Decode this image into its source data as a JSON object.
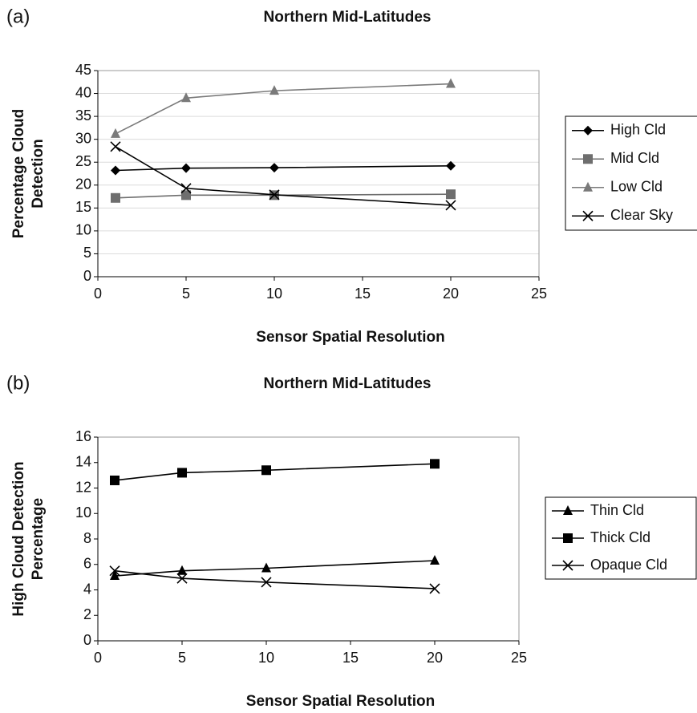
{
  "chart_data": [
    {
      "type": "line",
      "panel": "(a)",
      "title": "Northern Mid-Latitudes",
      "xlabel": "Sensor Spatial Resolution",
      "ylabel": [
        "Percentage Cloud",
        "Detection"
      ],
      "x": [
        1,
        5,
        10,
        20
      ],
      "xlim": [
        0,
        25
      ],
      "xticks": [
        0,
        5,
        10,
        15,
        20,
        25
      ],
      "ylim": [
        0,
        45
      ],
      "yticks": [
        0,
        5,
        10,
        15,
        20,
        25,
        30,
        35,
        40,
        45
      ],
      "grid": true,
      "legend": "right",
      "series": [
        {
          "name": "High Cld",
          "color": "#000000",
          "marker": "diamond",
          "values": [
            23.2,
            23.7,
            23.8,
            24.2
          ]
        },
        {
          "name": "Mid Cld",
          "color": "#6e6e6e",
          "marker": "square",
          "values": [
            17.2,
            17.8,
            17.8,
            18.0
          ]
        },
        {
          "name": "Low Cld",
          "color": "#7a7a7a",
          "marker": "triangle",
          "values": [
            31.2,
            39.0,
            40.6,
            42.1
          ]
        },
        {
          "name": "Clear Sky",
          "color": "#000000",
          "marker": "x",
          "values": [
            28.4,
            19.3,
            17.9,
            15.6
          ]
        }
      ]
    },
    {
      "type": "line",
      "panel": "(b)",
      "title": "Northern Mid-Latitudes",
      "xlabel": "Sensor Spatial Resolution",
      "ylabel": [
        "High Cloud Detection",
        "Percentage"
      ],
      "x": [
        1,
        5,
        10,
        20
      ],
      "xlim": [
        0,
        25
      ],
      "xticks": [
        0,
        5,
        10,
        15,
        20,
        25
      ],
      "ylim": [
        0,
        16
      ],
      "yticks": [
        0,
        2,
        4,
        6,
        8,
        10,
        12,
        14,
        16
      ],
      "grid": false,
      "legend": "right",
      "series": [
        {
          "name": "Thin Cld",
          "color": "#000000",
          "marker": "triangle",
          "values": [
            5.1,
            5.5,
            5.7,
            6.3
          ]
        },
        {
          "name": "Thick Cld",
          "color": "#000000",
          "marker": "square",
          "values": [
            12.6,
            13.2,
            13.4,
            13.9
          ]
        },
        {
          "name": "Opaque Cld",
          "color": "#000000",
          "marker": "x",
          "values": [
            5.5,
            4.9,
            4.6,
            4.1
          ]
        }
      ]
    }
  ]
}
